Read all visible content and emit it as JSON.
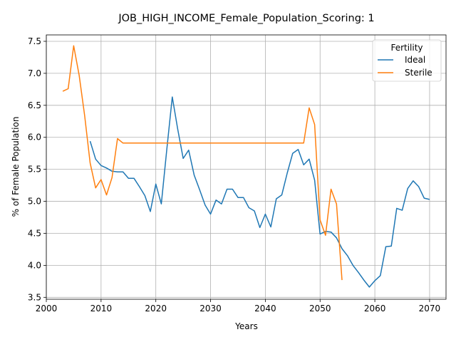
{
  "chart_data": {
    "type": "line",
    "title": "JOB_HIGH_INCOME_Female_Population_Scoring: 1",
    "xlabel": "Years",
    "ylabel": "% of Female Population",
    "xlim": [
      2000,
      2073
    ],
    "ylim": [
      3.47,
      7.6
    ],
    "xticks": [
      2000,
      2010,
      2020,
      2030,
      2040,
      2050,
      2060,
      2070
    ],
    "yticks": [
      3.5,
      4.0,
      4.5,
      5.0,
      5.5,
      6.0,
      6.5,
      7.0,
      7.5
    ],
    "xtick_labels": [
      "2000",
      "2010",
      "2020",
      "2030",
      "2040",
      "2050",
      "2060",
      "2070"
    ],
    "ytick_labels": [
      "3.5",
      "4.0",
      "4.5",
      "5.0",
      "5.5",
      "6.0",
      "6.5",
      "7.0",
      "7.5"
    ],
    "grid": true,
    "legend": {
      "title": "Fertility",
      "position": "top-right"
    },
    "series": [
      {
        "name": "Ideal",
        "color": "#1f77b4",
        "x": [
          2008,
          2009,
          2010,
          2011,
          2012,
          2013,
          2014,
          2015,
          2016,
          2017,
          2018,
          2019,
          2020,
          2021,
          2022,
          2023,
          2024,
          2025,
          2026,
          2027,
          2028,
          2029,
          2030,
          2031,
          2032,
          2033,
          2034,
          2035,
          2036,
          2037,
          2038,
          2039,
          2040,
          2041,
          2042,
          2043,
          2044,
          2045,
          2046,
          2047,
          2048,
          2049,
          2050,
          2051,
          2052,
          2053,
          2054,
          2055,
          2056,
          2057,
          2058,
          2059,
          2060,
          2061,
          2062,
          2063,
          2064,
          2065,
          2066,
          2067,
          2068,
          2069,
          2070
        ],
        "values": [
          5.94,
          5.66,
          5.56,
          5.52,
          5.47,
          5.46,
          5.46,
          5.36,
          5.36,
          5.23,
          5.09,
          4.84,
          5.27,
          4.96,
          5.81,
          6.63,
          6.13,
          5.67,
          5.8,
          5.41,
          5.18,
          4.94,
          4.8,
          5.02,
          4.96,
          5.19,
          5.19,
          5.06,
          5.06,
          4.9,
          4.85,
          4.59,
          4.8,
          4.6,
          5.04,
          5.1,
          5.44,
          5.75,
          5.81,
          5.57,
          5.66,
          5.33,
          4.49,
          4.53,
          4.52,
          4.43,
          4.26,
          4.15,
          4.0,
          3.89,
          3.77,
          3.66,
          3.76,
          3.84,
          4.29,
          4.3,
          4.89,
          4.86,
          5.2,
          5.32,
          5.23,
          5.05,
          5.03
        ]
      },
      {
        "name": "Sterile",
        "color": "#ff7f0e",
        "x": [
          2003,
          2004,
          2005,
          2006,
          2007,
          2008,
          2009,
          2010,
          2011,
          2012,
          2013,
          2014,
          2015,
          2016,
          2017,
          2018,
          2019,
          2020,
          2021,
          2022,
          2023,
          2024,
          2025,
          2026,
          2027,
          2028,
          2029,
          2030,
          2031,
          2032,
          2033,
          2034,
          2035,
          2036,
          2037,
          2038,
          2039,
          2040,
          2041,
          2042,
          2043,
          2044,
          2045,
          2046,
          2047,
          2048,
          2049,
          2050,
          2051,
          2052,
          2053,
          2054
        ],
        "values": [
          6.72,
          6.76,
          7.43,
          6.97,
          6.34,
          5.6,
          5.21,
          5.34,
          5.1,
          5.37,
          5.98,
          5.91,
          5.91,
          5.91,
          5.91,
          5.91,
          5.91,
          5.91,
          5.91,
          5.91,
          5.91,
          5.91,
          5.91,
          5.91,
          5.91,
          5.91,
          5.91,
          5.91,
          5.91,
          5.91,
          5.91,
          5.91,
          5.91,
          5.91,
          5.91,
          5.91,
          5.91,
          5.91,
          5.91,
          5.91,
          5.91,
          5.91,
          5.91,
          5.91,
          5.91,
          6.46,
          6.2,
          4.71,
          4.47,
          5.19,
          4.96,
          3.77
        ]
      }
    ]
  }
}
